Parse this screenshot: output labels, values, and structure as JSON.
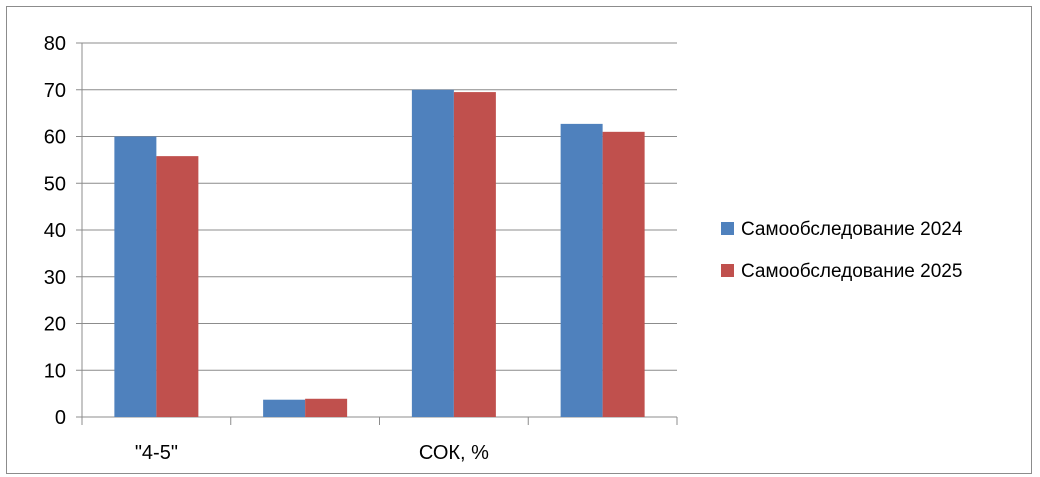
{
  "chart_data": {
    "type": "bar",
    "categories": [
      "\"4-5\"",
      "",
      "СОК, %",
      ""
    ],
    "series": [
      {
        "name": "Самообследование 2024",
        "values": [
          60,
          3.7,
          70,
          62.7
        ],
        "color": "#4f81bd"
      },
      {
        "name": "Самообследование 2025",
        "values": [
          55.8,
          3.9,
          69.5,
          61
        ],
        "color": "#c0504d"
      }
    ],
    "ylim": [
      0,
      80
    ],
    "yticks": [
      0,
      10,
      20,
      30,
      40,
      50,
      60,
      70,
      80
    ],
    "grid": true,
    "legend": "right",
    "title": "",
    "xlabel": "",
    "ylabel": ""
  }
}
